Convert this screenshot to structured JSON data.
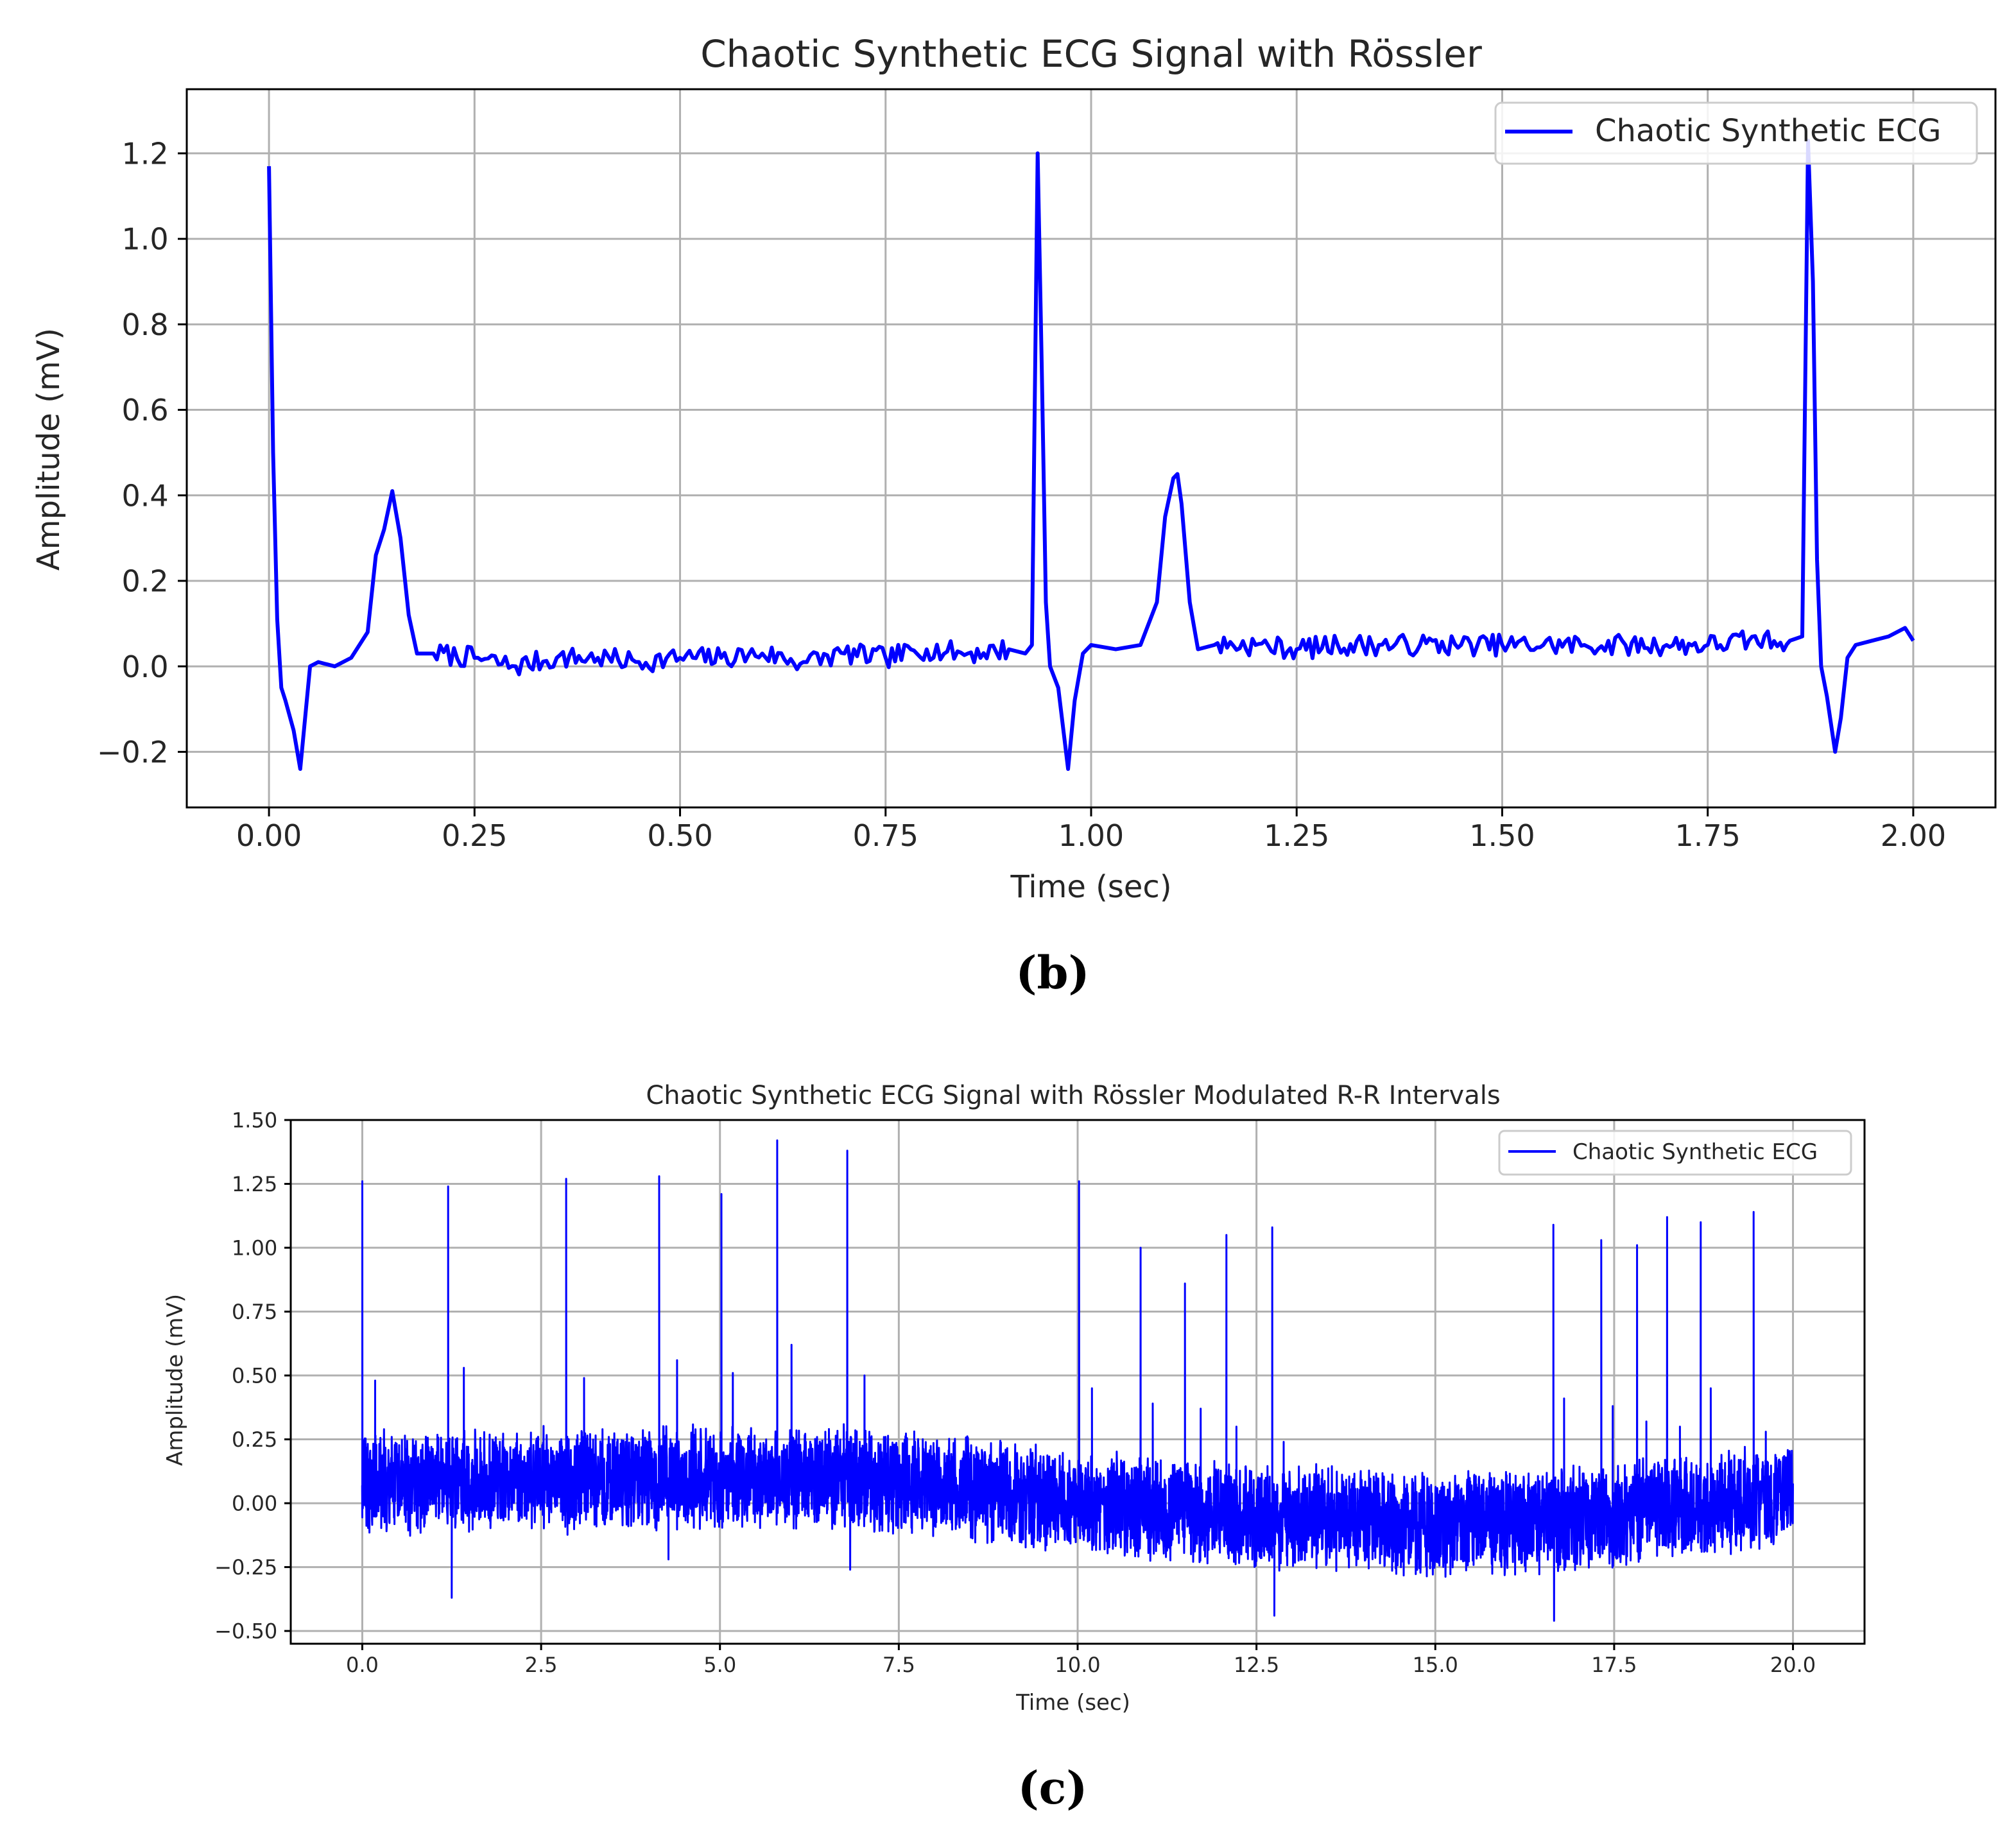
{
  "chart_data": [
    {
      "type": "line",
      "title": "Chaotic Synthetic ECG Signal with Rössler",
      "xlabel": "Time (sec)",
      "ylabel": "Amplitude (mV)",
      "xlim": [
        -0.1,
        2.1
      ],
      "ylim": [
        -0.33,
        1.35
      ],
      "xticks": [
        0.0,
        0.25,
        0.5,
        0.75,
        1.0,
        1.25,
        1.5,
        1.75,
        2.0
      ],
      "xtick_labels": [
        "0.00",
        "0.25",
        "0.50",
        "0.75",
        "1.00",
        "1.25",
        "1.50",
        "1.75",
        "2.00"
      ],
      "yticks": [
        -0.2,
        0.0,
        0.2,
        0.4,
        0.6,
        0.8,
        1.0,
        1.2
      ],
      "ytick_labels": [
        "−0.2",
        "0.0",
        "0.2",
        "0.4",
        "0.6",
        "0.8",
        "1.0",
        "1.2"
      ],
      "grid": true,
      "legend_position": "upper right",
      "caption": "(b)",
      "series": [
        {
          "name": "Chaotic Synthetic ECG",
          "color": "#0000ff",
          "x": [
            0.0,
            0.005,
            0.01,
            0.015,
            0.02,
            0.03,
            0.038,
            0.045,
            0.05,
            0.06,
            0.08,
            0.1,
            0.12,
            0.13,
            0.14,
            0.15,
            0.16,
            0.17,
            0.18,
            0.2,
            0.25,
            0.3,
            0.35,
            0.4,
            0.45,
            0.5,
            0.55,
            0.6,
            0.65,
            0.7,
            0.75,
            0.8,
            0.85,
            0.9,
            0.92,
            0.928,
            0.935,
            0.94,
            0.945,
            0.95,
            0.96,
            0.972,
            0.98,
            0.99,
            1.0,
            1.03,
            1.06,
            1.08,
            1.09,
            1.1,
            1.105,
            1.11,
            1.12,
            1.13,
            1.15,
            1.2,
            1.25,
            1.3,
            1.35,
            1.4,
            1.45,
            1.5,
            1.55,
            1.6,
            1.65,
            1.7,
            1.75,
            1.8,
            1.85,
            1.865,
            1.872,
            1.878,
            1.883,
            1.888,
            1.895,
            1.905,
            1.912,
            1.92,
            1.93,
            1.95,
            1.97,
            1.99,
            2.0
          ],
          "y": [
            1.17,
            0.5,
            0.11,
            -0.05,
            -0.08,
            -0.15,
            -0.24,
            -0.1,
            0.0,
            0.01,
            0.0,
            0.02,
            0.08,
            0.26,
            0.32,
            0.41,
            0.3,
            0.12,
            0.03,
            0.03,
            0.02,
            0.0,
            0.02,
            0.02,
            0.01,
            0.02,
            0.02,
            0.03,
            0.01,
            0.03,
            0.02,
            0.04,
            0.03,
            0.04,
            0.03,
            0.05,
            1.2,
            0.7,
            0.15,
            0.0,
            -0.05,
            -0.24,
            -0.08,
            0.03,
            0.05,
            0.04,
            0.05,
            0.15,
            0.35,
            0.44,
            0.45,
            0.38,
            0.15,
            0.04,
            0.05,
            0.05,
            0.04,
            0.05,
            0.05,
            0.05,
            0.05,
            0.05,
            0.05,
            0.05,
            0.05,
            0.05,
            0.05,
            0.06,
            0.06,
            0.07,
            1.23,
            0.9,
            0.25,
            0.0,
            -0.07,
            -0.2,
            -0.12,
            0.02,
            0.05,
            0.06,
            0.07,
            0.09,
            0.06
          ]
        }
      ]
    },
    {
      "type": "line",
      "title": "Chaotic Synthetic ECG Signal with Rössler Modulated R-R Intervals",
      "xlabel": "Time (sec)",
      "ylabel": "Amplitude (mV)",
      "xlim": [
        -1.0,
        21.0
      ],
      "ylim": [
        -0.55,
        1.5
      ],
      "xticks": [
        0.0,
        2.5,
        5.0,
        7.5,
        10.0,
        12.5,
        15.0,
        17.5,
        20.0
      ],
      "xtick_labels": [
        "0.0",
        "2.5",
        "5.0",
        "7.5",
        "10.0",
        "12.5",
        "15.0",
        "17.5",
        "20.0"
      ],
      "yticks": [
        -0.5,
        -0.25,
        0.0,
        0.25,
        0.5,
        0.75,
        1.0,
        1.25,
        1.5
      ],
      "ytick_labels": [
        "−0.50",
        "−0.25",
        "0.00",
        "0.25",
        "0.50",
        "0.75",
        "1.00",
        "1.25",
        "1.50"
      ],
      "grid": true,
      "legend_position": "upper right",
      "caption": "(c)",
      "series": [
        {
          "name": "Chaotic Synthetic ECG",
          "color": "#0000ff",
          "baseline": {
            "x": [
              0.0,
              2.5,
              5.0,
              7.0,
              8.5,
              10.0,
              12.5,
              15.0,
              16.5,
              18.5,
              20.0
            ],
            "y": [
              0.07,
              0.09,
              0.1,
              0.1,
              0.05,
              0.0,
              -0.05,
              -0.08,
              -0.07,
              -0.02,
              0.02
            ]
          },
          "r_peaks": {
            "x": [
              0.0,
              1.2,
              2.85,
              4.15,
              5.02,
              5.8,
              6.78,
              10.02,
              10.88,
              11.5,
              12.08,
              12.72,
              16.65,
              17.32,
              17.82,
              18.24,
              18.71,
              19.45
            ],
            "y": [
              1.26,
              1.24,
              1.27,
              1.28,
              1.21,
              1.42,
              1.38,
              1.26,
              1.0,
              0.86,
              1.05,
              1.08,
              1.09,
              1.03,
              1.01,
              1.12,
              1.1,
              1.14
            ]
          },
          "t_waves": {
            "x": [
              0.18,
              1.42,
              3.1,
              4.4,
              5.18,
              6.0,
              7.02,
              10.2,
              11.05,
              11.72,
              12.22,
              12.88,
              16.8,
              17.48,
              17.95,
              18.42,
              18.85,
              19.62
            ],
            "y": [
              0.48,
              0.53,
              0.49,
              0.56,
              0.51,
              0.62,
              0.5,
              0.45,
              0.39,
              0.37,
              0.3,
              0.24,
              0.41,
              0.38,
              0.32,
              0.3,
              0.45,
              0.28
            ]
          },
          "s_troughs": {
            "x": [
              1.25,
              4.28,
              6.82,
              12.75,
              16.66
            ],
            "y": [
              -0.37,
              -0.22,
              -0.26,
              -0.44,
              -0.46
            ]
          }
        }
      ]
    }
  ]
}
